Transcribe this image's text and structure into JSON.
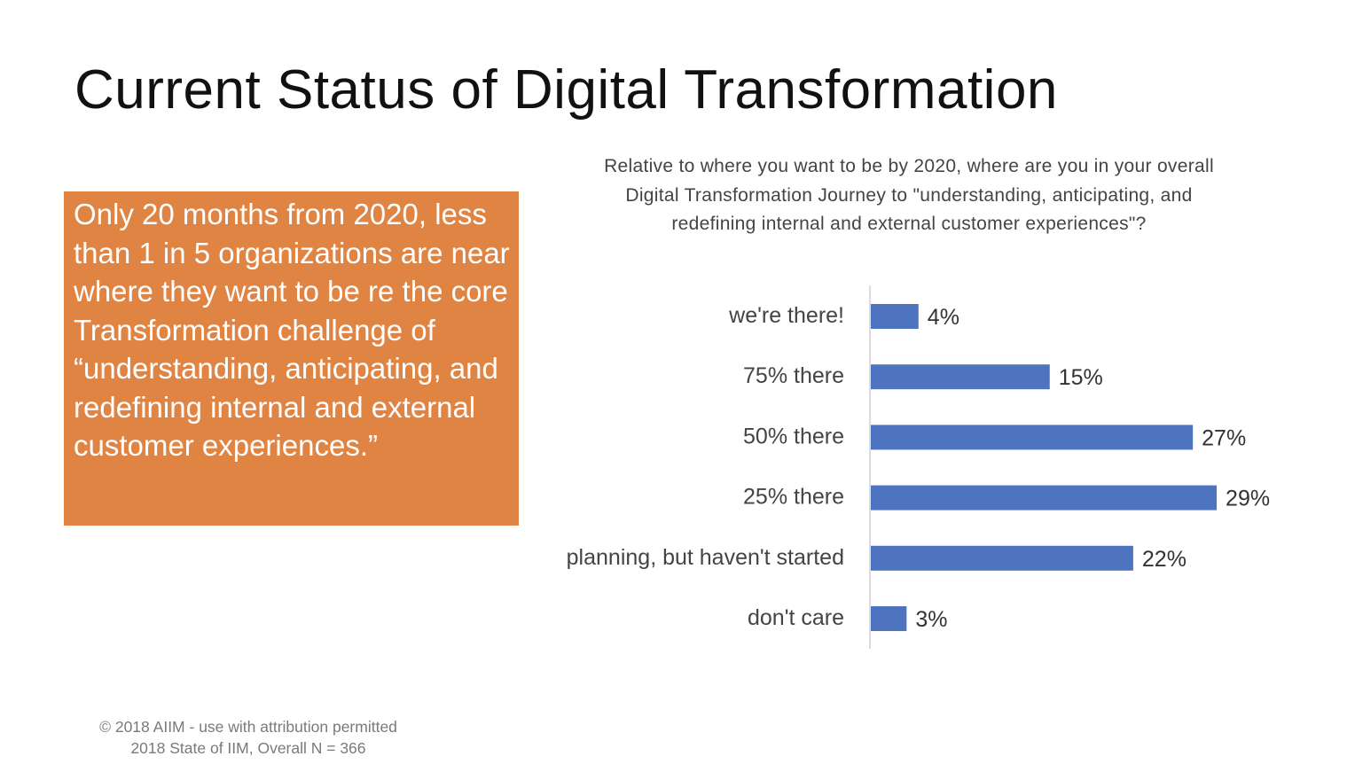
{
  "slide": {
    "title": "Current Status of Digital Transformation",
    "callout": "Only 20 months from 2020, less than 1 in 5 organizations are near where they want to be re the core Transformation challenge of “understanding, anticipating, and redefining internal and external customer experiences.”",
    "footer_line1": "© 2018 AIIM - use with attribution permitted",
    "footer_line2": "2018 State of IIM, Overall N = 366",
    "callout_color": "#e08443"
  },
  "chart_data": {
    "type": "bar",
    "orientation": "horizontal",
    "title": "Relative to where you want to be by 2020, where are you in your overall Digital Transformation Journey to \"understanding, anticipating, and redefining internal and external customer experiences\"?",
    "categories": [
      "we're there!",
      "75% there",
      "50% there",
      "25% there",
      "planning, but haven't started",
      "don't care"
    ],
    "values": [
      4,
      15,
      27,
      29,
      22,
      3
    ],
    "data_labels": [
      "4%",
      "15%",
      "27%",
      "29%",
      "22%",
      "3%"
    ],
    "unit": "%",
    "bar_color": "#4e74bf",
    "grid": false,
    "legend": "none"
  }
}
